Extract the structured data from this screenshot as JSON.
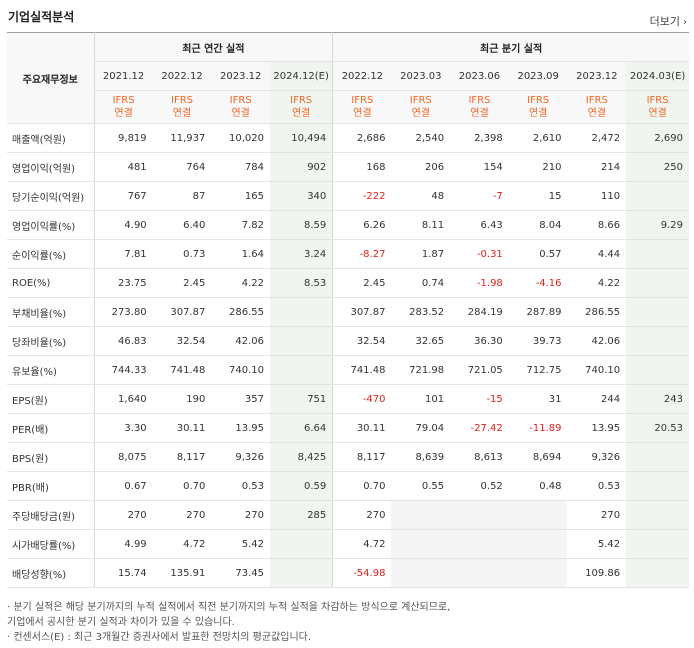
{
  "title": "기업실적분석",
  "more_label": "더보기",
  "header": {
    "corner": "주요재무정보",
    "annual_group": "최근 연간 실적",
    "quarter_group": "최근 분기 실적",
    "periods": [
      "2021.12",
      "2022.12",
      "2023.12",
      "2024.12(E)",
      "2022.12",
      "2023.03",
      "2023.06",
      "2023.09",
      "2023.12",
      "2024.03(E)"
    ],
    "ifrs": "IFRS",
    "basis": "연결"
  },
  "rows": [
    {
      "label": "매출액(억원)",
      "values": [
        "9,819",
        "11,937",
        "10,020",
        "10,494",
        "2,686",
        "2,540",
        "2,398",
        "2,610",
        "2,472",
        "2,690"
      ]
    },
    {
      "label": "영업이익(억원)",
      "values": [
        "481",
        "764",
        "784",
        "902",
        "168",
        "206",
        "154",
        "210",
        "214",
        "250"
      ]
    },
    {
      "label": "당기순이익(억원)",
      "values": [
        "767",
        "87",
        "165",
        "340",
        "-222",
        "48",
        "-7",
        "15",
        "110",
        ""
      ]
    },
    {
      "label": "영업이익률(%)",
      "values": [
        "4.90",
        "6.40",
        "7.82",
        "8.59",
        "6.26",
        "8.11",
        "6.43",
        "8.04",
        "8.66",
        "9.29"
      ]
    },
    {
      "label": "순이익률(%)",
      "values": [
        "7.81",
        "0.73",
        "1.64",
        "3.24",
        "-8.27",
        "1.87",
        "-0.31",
        "0.57",
        "4.44",
        ""
      ]
    },
    {
      "label": "ROE(%)",
      "values": [
        "23.75",
        "2.45",
        "4.22",
        "8.53",
        "2.45",
        "0.74",
        "-1.98",
        "-4.16",
        "4.22",
        ""
      ]
    },
    {
      "label": "부채비율(%)",
      "values": [
        "273.80",
        "307.87",
        "286.55",
        "",
        "307.87",
        "283.52",
        "284.19",
        "287.89",
        "286.55",
        ""
      ]
    },
    {
      "label": "당좌비율(%)",
      "values": [
        "46.83",
        "32.54",
        "42.06",
        "",
        "32.54",
        "32.65",
        "36.30",
        "39.73",
        "42.06",
        ""
      ]
    },
    {
      "label": "유보율(%)",
      "values": [
        "744.33",
        "741.48",
        "740.10",
        "",
        "741.48",
        "721.98",
        "721.05",
        "712.75",
        "740.10",
        ""
      ]
    },
    {
      "label": "EPS(원)",
      "values": [
        "1,640",
        "190",
        "357",
        "751",
        "-470",
        "101",
        "-15",
        "31",
        "244",
        "243"
      ]
    },
    {
      "label": "PER(배)",
      "values": [
        "3.30",
        "30.11",
        "13.95",
        "6.64",
        "30.11",
        "79.04",
        "-27.42",
        "-11.89",
        "13.95",
        "20.53"
      ]
    },
    {
      "label": "BPS(원)",
      "values": [
        "8,075",
        "8,117",
        "9,326",
        "8,425",
        "8,117",
        "8,639",
        "8,613",
        "8,694",
        "9,326",
        ""
      ]
    },
    {
      "label": "PBR(배)",
      "values": [
        "0.67",
        "0.70",
        "0.53",
        "0.59",
        "0.70",
        "0.55",
        "0.52",
        "0.48",
        "0.53",
        ""
      ]
    },
    {
      "label": "주당배당금(원)",
      "values": [
        "270",
        "270",
        "270",
        "285",
        "270",
        "",
        "",
        "",
        "270",
        ""
      ]
    },
    {
      "label": "시가배당률(%)",
      "values": [
        "4.99",
        "4.72",
        "5.42",
        "",
        "4.72",
        "",
        "",
        "",
        "5.42",
        ""
      ]
    },
    {
      "label": "배당성향(%)",
      "values": [
        "15.74",
        "135.91",
        "73.45",
        "",
        "-54.98",
        "",
        "",
        "",
        "109.86",
        ""
      ]
    }
  ],
  "notes": [
    "· 분기 실적은 해당 분기까지의 누적 실적에서 직전 분기까지의 누적 실적을 차감하는 방식으로 계산되므로,",
    "   기업에서 공시한 분기 실적과 차이가 있을 수 있습니다.",
    "· 컨센서스(E) : 최근 3개월간 증권사에서 발표한 전망치의 평균값입니다."
  ],
  "colors": {
    "negative": "#e0221b",
    "ifrs": "#f26522",
    "estimate_bg": "#f0f6ef"
  }
}
